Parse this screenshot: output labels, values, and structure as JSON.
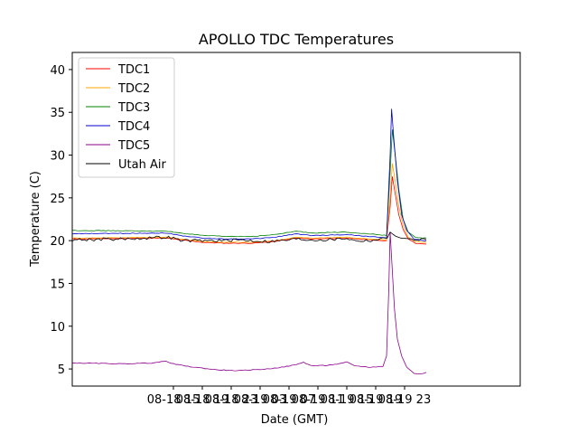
{
  "chart_data": {
    "type": "line",
    "title": "APOLLO TDC Temperatures",
    "xlabel": "Date (GMT)",
    "ylabel": "Temperature (C)",
    "xlim": [
      -7.0,
      55.0
    ],
    "ylim": [
      3.0,
      42.0
    ],
    "x_unit": "hours since 08-18 08:00 GMT",
    "xticks": [
      {
        "value": 7,
        "label": "08-18 15"
      },
      {
        "value": 11,
        "label": "08-18 19"
      },
      {
        "value": 15,
        "label": "08-18 23"
      },
      {
        "value": 19,
        "label": "08-19 03"
      },
      {
        "value": 23,
        "label": "08-19 07"
      },
      {
        "value": 27,
        "label": "08-19 11"
      },
      {
        "value": 31,
        "label": "08-19 15"
      },
      {
        "value": 35,
        "label": "08-19 19"
      },
      {
        "value": 39,
        "label": "08-19 23"
      }
    ],
    "yticks": [
      5,
      10,
      15,
      20,
      25,
      30,
      35,
      40
    ],
    "grid": false,
    "legend_position": "upper-left",
    "series": [
      {
        "name": "TDC1",
        "color": "#ff0000",
        "points": [
          [
            -7,
            20.2
          ],
          [
            6,
            20.3
          ],
          [
            8,
            20.1
          ],
          [
            11,
            19.8
          ],
          [
            14,
            19.7
          ],
          [
            18,
            19.7
          ],
          [
            21,
            19.9
          ],
          [
            24,
            20.3
          ],
          [
            26,
            20.2
          ],
          [
            31,
            20.3
          ],
          [
            34,
            20.1
          ],
          [
            36.5,
            20.0
          ],
          [
            37.0,
            24.0
          ],
          [
            37.3,
            27.5
          ],
          [
            37.7,
            25.5
          ],
          [
            38.2,
            23.0
          ],
          [
            38.8,
            21.3
          ],
          [
            39.5,
            20.2
          ],
          [
            40.5,
            19.7
          ],
          [
            41.5,
            19.6
          ],
          [
            42.0,
            19.6
          ]
        ]
      },
      {
        "name": "TDC2",
        "color": "#ffa500",
        "points": [
          [
            -7,
            20.3
          ],
          [
            6,
            20.4
          ],
          [
            8,
            20.2
          ],
          [
            11,
            19.9
          ],
          [
            14,
            19.8
          ],
          [
            18,
            19.8
          ],
          [
            21,
            20.0
          ],
          [
            24,
            20.4
          ],
          [
            26,
            20.3
          ],
          [
            31,
            20.4
          ],
          [
            34,
            20.2
          ],
          [
            36.5,
            20.1
          ],
          [
            37.0,
            25.0
          ],
          [
            37.3,
            29.0
          ],
          [
            37.7,
            27.0
          ],
          [
            38.2,
            24.0
          ],
          [
            38.8,
            21.8
          ],
          [
            39.5,
            20.4
          ],
          [
            40.5,
            19.9
          ],
          [
            41.5,
            19.8
          ],
          [
            42.0,
            19.8
          ]
        ]
      },
      {
        "name": "TDC3",
        "color": "#008000",
        "points": [
          [
            -7,
            21.2
          ],
          [
            6,
            21.1
          ],
          [
            8,
            20.9
          ],
          [
            11,
            20.6
          ],
          [
            14,
            20.5
          ],
          [
            18,
            20.5
          ],
          [
            21,
            20.7
          ],
          [
            24,
            21.1
          ],
          [
            26,
            20.9
          ],
          [
            31,
            21.0
          ],
          [
            34,
            20.8
          ],
          [
            36.5,
            20.6
          ],
          [
            37.0,
            28.0
          ],
          [
            37.3,
            33.0
          ],
          [
            37.7,
            30.0
          ],
          [
            38.2,
            26.0
          ],
          [
            38.8,
            22.5
          ],
          [
            39.5,
            21.0
          ],
          [
            40.5,
            20.4
          ],
          [
            41.5,
            20.3
          ],
          [
            42.0,
            20.3
          ]
        ]
      },
      {
        "name": "TDC4",
        "color": "#0000cd",
        "points": [
          [
            -7,
            20.8
          ],
          [
            6,
            20.9
          ],
          [
            8,
            20.6
          ],
          [
            11,
            20.3
          ],
          [
            14,
            20.2
          ],
          [
            18,
            20.2
          ],
          [
            21,
            20.4
          ],
          [
            24,
            20.8
          ],
          [
            26,
            20.6
          ],
          [
            31,
            20.7
          ],
          [
            34,
            20.5
          ],
          [
            36.5,
            20.3
          ],
          [
            37.0,
            30.0
          ],
          [
            37.2,
            35.4
          ],
          [
            37.5,
            32.0
          ],
          [
            38.0,
            27.0
          ],
          [
            38.6,
            23.0
          ],
          [
            39.3,
            21.2
          ],
          [
            40.3,
            20.2
          ],
          [
            41.5,
            20.0
          ],
          [
            42.0,
            20.0
          ]
        ]
      },
      {
        "name": "TDC5",
        "color": "#8b008b",
        "points": [
          [
            -7,
            5.7
          ],
          [
            0,
            5.6
          ],
          [
            4,
            5.7
          ],
          [
            6,
            5.9
          ],
          [
            7,
            5.6
          ],
          [
            9,
            5.3
          ],
          [
            11,
            5.1
          ],
          [
            13,
            4.9
          ],
          [
            16,
            4.8
          ],
          [
            18,
            4.9
          ],
          [
            20,
            5.0
          ],
          [
            22,
            5.2
          ],
          [
            24,
            5.5
          ],
          [
            25,
            5.8
          ],
          [
            26,
            5.4
          ],
          [
            28,
            5.4
          ],
          [
            30,
            5.6
          ],
          [
            31,
            5.8
          ],
          [
            32,
            5.4
          ],
          [
            34,
            5.2
          ],
          [
            36,
            5.3
          ],
          [
            36.5,
            6.5
          ],
          [
            36.8,
            14.0
          ],
          [
            37.0,
            21.0
          ],
          [
            37.2,
            18.0
          ],
          [
            37.6,
            12.0
          ],
          [
            38.0,
            8.5
          ],
          [
            38.6,
            6.5
          ],
          [
            39.3,
            5.2
          ],
          [
            40.3,
            4.5
          ],
          [
            41.2,
            4.4
          ],
          [
            42.0,
            4.6
          ]
        ]
      },
      {
        "name": "Utah Air",
        "color": "#000000",
        "points": [
          [
            -7,
            20.1
          ],
          [
            0,
            20.2
          ],
          [
            6,
            20.4
          ],
          [
            7,
            20.3
          ],
          [
            8,
            20.0
          ],
          [
            11,
            20.0
          ],
          [
            14,
            20.0
          ],
          [
            16,
            20.1
          ],
          [
            18,
            20.0
          ],
          [
            20,
            19.9
          ],
          [
            22,
            20.0
          ],
          [
            24,
            20.2
          ],
          [
            26,
            20.1
          ],
          [
            28,
            20.1
          ],
          [
            30,
            20.2
          ],
          [
            31,
            20.3
          ],
          [
            32,
            20.0
          ],
          [
            34,
            20.0
          ],
          [
            36,
            20.2
          ],
          [
            36.6,
            20.3
          ],
          [
            37.0,
            21.0
          ],
          [
            37.3,
            20.8
          ],
          [
            37.8,
            20.5
          ],
          [
            38.5,
            20.3
          ],
          [
            40,
            20.2
          ],
          [
            42,
            20.1
          ]
        ]
      }
    ]
  }
}
